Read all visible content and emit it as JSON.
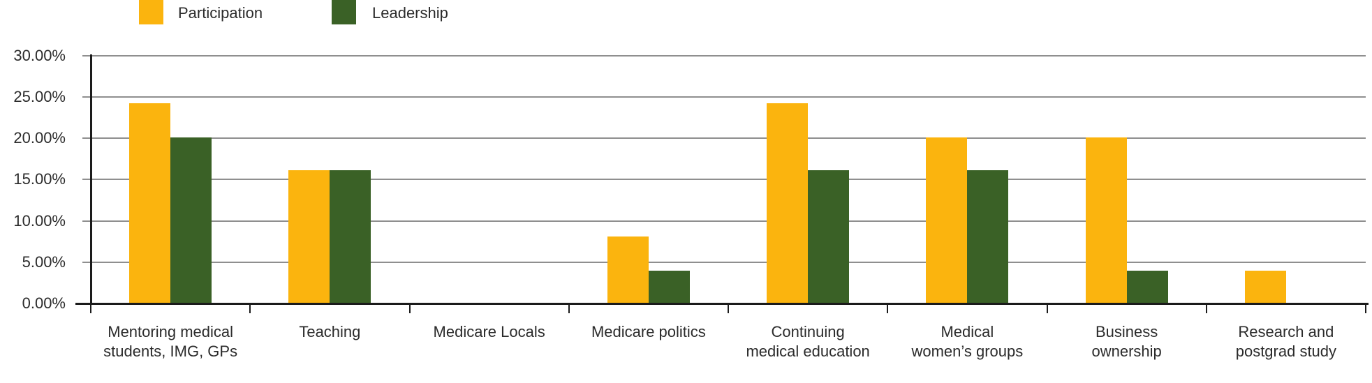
{
  "legend": {
    "items": [
      {
        "label": "Participation",
        "color": "#FBB40E"
      },
      {
        "label": "Leadership",
        "color": "#3A6126"
      }
    ]
  },
  "chart_data": {
    "type": "bar",
    "title": "",
    "xlabel": "",
    "ylabel": "",
    "categories": [
      "Mentoring medical students, IMG, GPs",
      "Teaching",
      "Medicare Locals",
      "Medicare politics",
      "Continuing medical education",
      "Medical women’s groups",
      "Business ownership",
      "Research and postgrad study"
    ],
    "category_label_lines": [
      [
        "Mentoring medical",
        "students, IMG, GPs"
      ],
      [
        "Teaching"
      ],
      [
        "Medicare Locals"
      ],
      [
        "Medicare politics"
      ],
      [
        "Continuing",
        "medical education"
      ],
      [
        "Medical",
        "women’s groups"
      ],
      [
        "Business",
        "ownership"
      ],
      [
        "Research and",
        "postgrad study"
      ]
    ],
    "series": [
      {
        "name": "Participation",
        "color": "#FBB40E",
        "values": [
          24.2,
          16.1,
          0,
          8.1,
          24.2,
          20.1,
          20.1,
          4.0
        ]
      },
      {
        "name": "Leadership",
        "color": "#3A6126",
        "values": [
          20.1,
          16.1,
          0,
          4.0,
          16.1,
          16.1,
          4.0,
          0
        ]
      }
    ],
    "ylim": [
      0,
      30
    ],
    "y_ticks": [
      {
        "value": 30,
        "label": "30.00%"
      },
      {
        "value": 25,
        "label": "25.00%"
      },
      {
        "value": 20,
        "label": "20.00%"
      },
      {
        "value": 15,
        "label": "15.00%"
      },
      {
        "value": 10,
        "label": "10.00%"
      },
      {
        "value": 5,
        "label": "5.00%"
      },
      {
        "value": 0,
        "label": "0.00%"
      }
    ],
    "grid": true,
    "legend_position": "top-left"
  },
  "colors": {
    "axis": "#1b1b1b",
    "gridline": "#8f8f8f",
    "text": "#2b2b2b",
    "background": "#ffffff"
  }
}
